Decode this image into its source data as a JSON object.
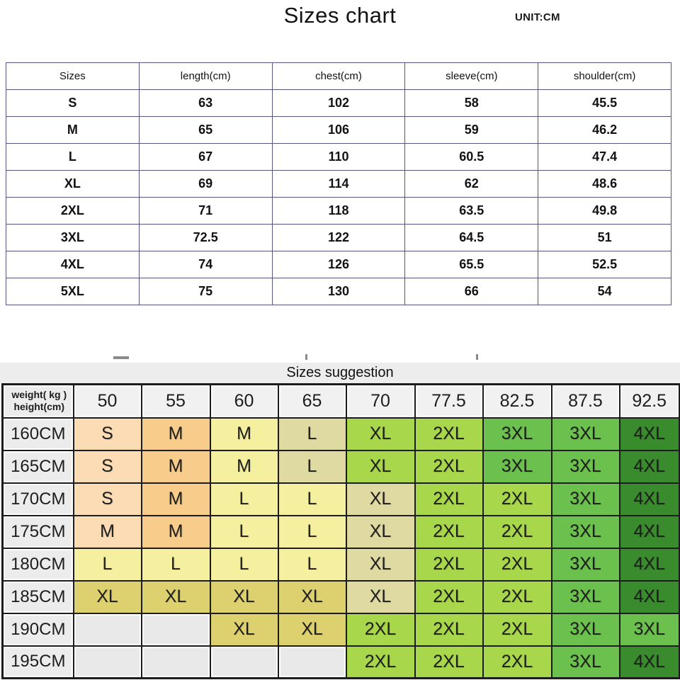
{
  "header": {
    "title": "Sizes chart",
    "unit": "UNIT:CM"
  },
  "size_table": {
    "headers": [
      "Sizes",
      "length(cm)",
      "chest(cm)",
      "sleeve(cm)",
      "shoulder(cm)"
    ],
    "rows": [
      [
        "S",
        "63",
        "102",
        "58",
        "45.5"
      ],
      [
        "M",
        "65",
        "106",
        "59",
        "46.2"
      ],
      [
        "L",
        "67",
        "110",
        "60.5",
        "47.4"
      ],
      [
        "XL",
        "69",
        "114",
        "62",
        "48.6"
      ],
      [
        "2XL",
        "71",
        "118",
        "63.5",
        "49.8"
      ],
      [
        "3XL",
        "72.5",
        "122",
        "64.5",
        "51"
      ],
      [
        "4XL",
        "74",
        "126",
        "65.5",
        "52.5"
      ],
      [
        "5XL",
        "75",
        "130",
        "66",
        "54"
      ]
    ]
  },
  "suggestion_table": {
    "title": "Sizes suggestion",
    "corner_line1": "weight( kg )",
    "corner_line2": "height(cm)",
    "weight_headers": [
      "50",
      "55",
      "60",
      "65",
      "70",
      "77.5",
      "82.5",
      "87.5",
      "92.5"
    ],
    "rows": [
      {
        "height": "160CM",
        "cells": [
          {
            "t": "S",
            "c": "peach"
          },
          {
            "t": "M",
            "c": "orange"
          },
          {
            "t": "M",
            "c": "yellow"
          },
          {
            "t": "L",
            "c": "khaki"
          },
          {
            "t": "XL",
            "c": "green"
          },
          {
            "t": "2XL",
            "c": "green"
          },
          {
            "t": "3XL",
            "c": "mgreen"
          },
          {
            "t": "3XL",
            "c": "mgreen"
          },
          {
            "t": "4XL",
            "c": "dgreen"
          }
        ]
      },
      {
        "height": "165CM",
        "cells": [
          {
            "t": "S",
            "c": "peach"
          },
          {
            "t": "M",
            "c": "orange"
          },
          {
            "t": "M",
            "c": "yellow"
          },
          {
            "t": "L",
            "c": "khaki"
          },
          {
            "t": "XL",
            "c": "green"
          },
          {
            "t": "2XL",
            "c": "green"
          },
          {
            "t": "3XL",
            "c": "mgreen"
          },
          {
            "t": "3XL",
            "c": "mgreen"
          },
          {
            "t": "4XL",
            "c": "dgreen"
          }
        ]
      },
      {
        "height": "170CM",
        "cells": [
          {
            "t": "S",
            "c": "peach"
          },
          {
            "t": "M",
            "c": "orange"
          },
          {
            "t": "L",
            "c": "yellow"
          },
          {
            "t": "L",
            "c": "yellow"
          },
          {
            "t": "XL",
            "c": "khaki"
          },
          {
            "t": "2XL",
            "c": "green"
          },
          {
            "t": "2XL",
            "c": "green"
          },
          {
            "t": "3XL",
            "c": "mgreen"
          },
          {
            "t": "4XL",
            "c": "dgreen"
          }
        ]
      },
      {
        "height": "175CM",
        "cells": [
          {
            "t": "M",
            "c": "peach"
          },
          {
            "t": "M",
            "c": "orange"
          },
          {
            "t": "L",
            "c": "yellow"
          },
          {
            "t": "L",
            "c": "yellow"
          },
          {
            "t": "XL",
            "c": "khaki"
          },
          {
            "t": "2XL",
            "c": "green"
          },
          {
            "t": "2XL",
            "c": "green"
          },
          {
            "t": "3XL",
            "c": "mgreen"
          },
          {
            "t": "4XL",
            "c": "dgreen"
          }
        ]
      },
      {
        "height": "180CM",
        "cells": [
          {
            "t": "L",
            "c": "yellow"
          },
          {
            "t": "L",
            "c": "yellow"
          },
          {
            "t": "L",
            "c": "yellow"
          },
          {
            "t": "L",
            "c": "yellow"
          },
          {
            "t": "XL",
            "c": "khaki"
          },
          {
            "t": "2XL",
            "c": "green"
          },
          {
            "t": "2XL",
            "c": "green"
          },
          {
            "t": "3XL",
            "c": "mgreen"
          },
          {
            "t": "4XL",
            "c": "dgreen"
          }
        ]
      },
      {
        "height": "185CM",
        "cells": [
          {
            "t": "XL",
            "c": "mustard"
          },
          {
            "t": "XL",
            "c": "mustard"
          },
          {
            "t": "XL",
            "c": "mustard"
          },
          {
            "t": "XL",
            "c": "mustard"
          },
          {
            "t": "XL",
            "c": "khaki"
          },
          {
            "t": "2XL",
            "c": "green"
          },
          {
            "t": "2XL",
            "c": "green"
          },
          {
            "t": "3XL",
            "c": "mgreen"
          },
          {
            "t": "4XL",
            "c": "dgreen"
          }
        ]
      },
      {
        "height": "190CM",
        "cells": [
          {
            "t": "",
            "c": "empty"
          },
          {
            "t": "",
            "c": "empty"
          },
          {
            "t": "XL",
            "c": "mustard"
          },
          {
            "t": "XL",
            "c": "mustard"
          },
          {
            "t": "2XL",
            "c": "green"
          },
          {
            "t": "2XL",
            "c": "green"
          },
          {
            "t": "2XL",
            "c": "green"
          },
          {
            "t": "3XL",
            "c": "mgreen"
          },
          {
            "t": "3XL",
            "c": "mgreen"
          }
        ]
      },
      {
        "height": "195CM",
        "cells": [
          {
            "t": "",
            "c": "empty"
          },
          {
            "t": "",
            "c": "empty"
          },
          {
            "t": "",
            "c": "empty"
          },
          {
            "t": "",
            "c": "empty"
          },
          {
            "t": "2XL",
            "c": "green"
          },
          {
            "t": "2XL",
            "c": "green"
          },
          {
            "t": "2XL",
            "c": "green"
          },
          {
            "t": "3XL",
            "c": "mgreen"
          },
          {
            "t": "4XL",
            "c": "dgreen"
          }
        ]
      }
    ]
  },
  "colors": {
    "peach": "#fbdcb4",
    "orange": "#f8cd8c",
    "yellow": "#f5efa0",
    "khaki": "#dfd9a2",
    "mustard": "#ddd06f",
    "green": "#a9d74b",
    "mgreen": "#6cc14e",
    "dgreen": "#3a8b2d",
    "empty": "#e9e9e9",
    "table1_border": "#55557d",
    "table2_border": "#1c1c1c"
  },
  "chart_data": [
    {
      "type": "table",
      "title": "Sizes chart",
      "unit": "CM",
      "columns": [
        "Sizes",
        "length(cm)",
        "chest(cm)",
        "sleeve(cm)",
        "shoulder(cm)"
      ],
      "rows": [
        [
          "S",
          63,
          102,
          58,
          45.5
        ],
        [
          "M",
          65,
          106,
          59,
          46.2
        ],
        [
          "L",
          67,
          110,
          60.5,
          47.4
        ],
        [
          "XL",
          69,
          114,
          62,
          48.6
        ],
        [
          "2XL",
          71,
          118,
          63.5,
          49.8
        ],
        [
          "3XL",
          72.5,
          122,
          64.5,
          51
        ],
        [
          "4XL",
          74,
          126,
          65.5,
          52.5
        ],
        [
          "5XL",
          75,
          130,
          66,
          54
        ]
      ]
    },
    {
      "type": "table",
      "title": "Sizes suggestion",
      "col_axis": "weight (kg)",
      "row_axis": "height (cm)",
      "columns": [
        50,
        55,
        60,
        65,
        70,
        77.5,
        82.5,
        87.5,
        92.5
      ],
      "row_labels": [
        "160CM",
        "165CM",
        "170CM",
        "175CM",
        "180CM",
        "185CM",
        "190CM",
        "195CM"
      ],
      "matrix": [
        [
          "S",
          "M",
          "M",
          "L",
          "XL",
          "2XL",
          "3XL",
          "3XL",
          "4XL"
        ],
        [
          "S",
          "M",
          "M",
          "L",
          "XL",
          "2XL",
          "3XL",
          "3XL",
          "4XL"
        ],
        [
          "S",
          "M",
          "L",
          "L",
          "XL",
          "2XL",
          "2XL",
          "3XL",
          "4XL"
        ],
        [
          "M",
          "M",
          "L",
          "L",
          "XL",
          "2XL",
          "2XL",
          "3XL",
          "4XL"
        ],
        [
          "L",
          "L",
          "L",
          "L",
          "XL",
          "2XL",
          "2XL",
          "3XL",
          "4XL"
        ],
        [
          "XL",
          "XL",
          "XL",
          "XL",
          "XL",
          "2XL",
          "2XL",
          "3XL",
          "4XL"
        ],
        [
          "",
          "",
          "XL",
          "XL",
          "2XL",
          "2XL",
          "2XL",
          "3XL",
          "3XL"
        ],
        [
          "",
          "",
          "",
          "",
          "2XL",
          "2XL",
          "2XL",
          "3XL",
          "4XL"
        ]
      ]
    }
  ]
}
